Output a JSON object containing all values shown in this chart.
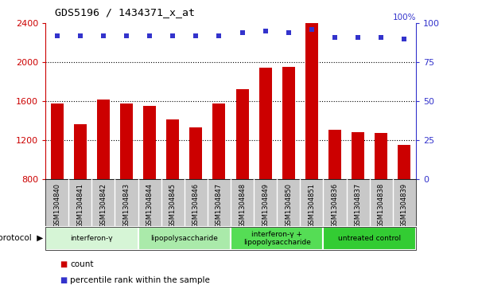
{
  "title": "GDS5196 / 1434371_x_at",
  "samples": [
    "GSM1304840",
    "GSM1304841",
    "GSM1304842",
    "GSM1304843",
    "GSM1304844",
    "GSM1304845",
    "GSM1304846",
    "GSM1304847",
    "GSM1304848",
    "GSM1304849",
    "GSM1304850",
    "GSM1304851",
    "GSM1304836",
    "GSM1304837",
    "GSM1304838",
    "GSM1304839"
  ],
  "counts": [
    1580,
    1360,
    1620,
    1580,
    1550,
    1410,
    1330,
    1580,
    1720,
    1940,
    1950,
    2400,
    1310,
    1280,
    1270,
    1155
  ],
  "percentiles": [
    92,
    92,
    92,
    92,
    92,
    92,
    92,
    92,
    94,
    95,
    94,
    96,
    91,
    91,
    91,
    90
  ],
  "groups": [
    {
      "label": "interferon-γ",
      "start": 0,
      "end": 4,
      "color": "#d6f5d6"
    },
    {
      "label": "lipopolysaccharide",
      "start": 4,
      "end": 8,
      "color": "#aaeaaa"
    },
    {
      "label": "interferon-γ +\nlipopolysaccharide",
      "start": 8,
      "end": 12,
      "color": "#55dd55"
    },
    {
      "label": "untreated control",
      "start": 12,
      "end": 16,
      "color": "#33cc33"
    }
  ],
  "ylim_left": [
    800,
    2400
  ],
  "ylim_right": [
    0,
    100
  ],
  "yticks_left": [
    800,
    1200,
    1600,
    2000,
    2400
  ],
  "yticks_right": [
    0,
    25,
    50,
    75,
    100
  ],
  "bar_color": "#cc0000",
  "dot_color": "#3333cc",
  "bar_width": 0.55,
  "legend_count_color": "#cc0000",
  "legend_pct_color": "#3333cc",
  "grid_color": "#000000",
  "label_box_color": "#c8c8c8",
  "background_color": "#ffffff"
}
